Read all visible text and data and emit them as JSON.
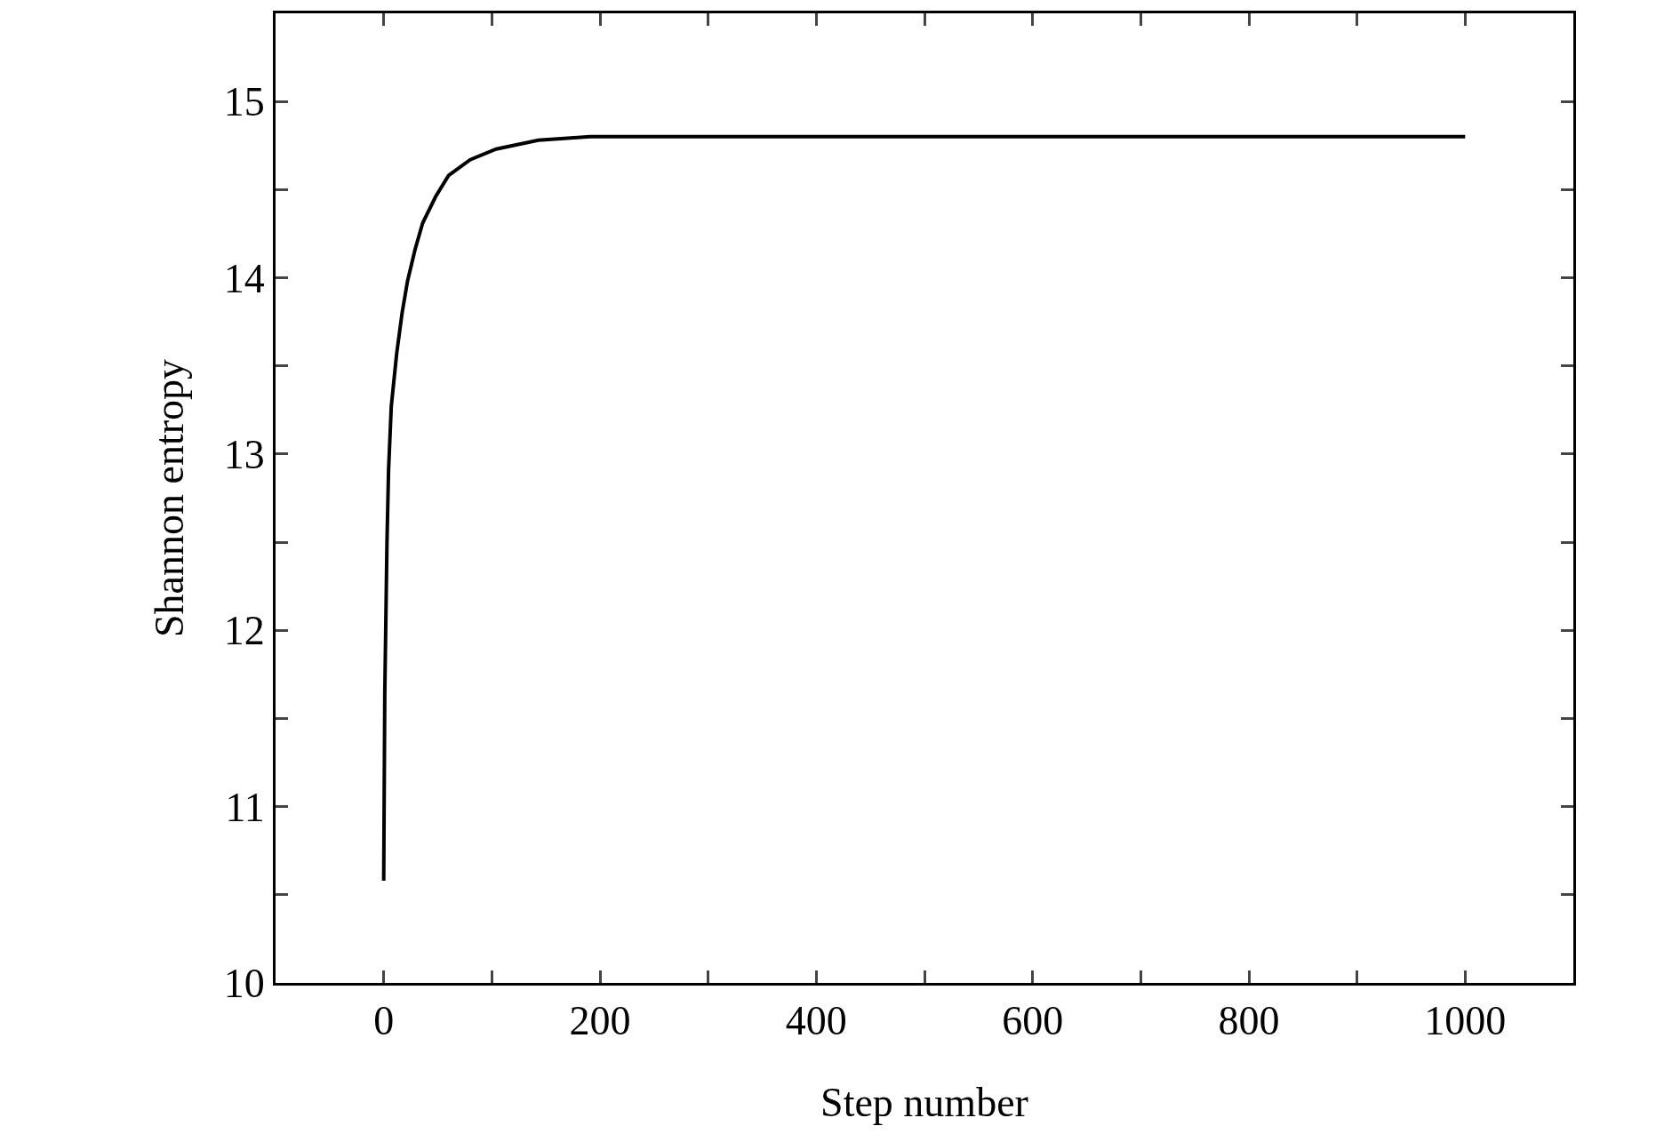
{
  "chart_data": {
    "type": "line",
    "xlabel": "Step number",
    "ylabel": "Shannon entropy",
    "x": [
      0,
      1,
      3,
      4.5,
      7,
      12,
      17,
      22,
      29,
      36,
      48,
      60,
      80,
      104,
      143,
      191,
      250,
      400,
      600,
      800,
      1000
    ],
    "series": [
      {
        "color": "#000000",
        "values": [
          10.58,
          11.64,
          12.49,
          12.91,
          13.27,
          13.57,
          13.8,
          13.98,
          14.16,
          14.31,
          14.46,
          14.58,
          14.67,
          14.73,
          14.78,
          14.8,
          14.8,
          14.8,
          14.8,
          14.8,
          14.8
        ]
      }
    ],
    "xlim": [
      -100,
      1100
    ],
    "xticks": [
      0,
      {
        "value": 100,
        "label": null
      },
      200,
      {
        "value": 300,
        "label": null
      },
      400,
      {
        "value": 500,
        "label": null
      },
      600,
      {
        "value": 700,
        "label": null
      },
      800,
      {
        "value": 900,
        "label": null
      },
      1000
    ],
    "ylim": [
      10,
      15.5
    ],
    "yticks": [
      10,
      {
        "value": 10.5,
        "label": null
      },
      11,
      {
        "value": 11.5,
        "label": null
      },
      12,
      {
        "value": 12.5,
        "label": null
      },
      13,
      {
        "value": 13.5,
        "label": null
      },
      14,
      {
        "value": 14.5,
        "label": null
      },
      15
    ],
    "marker": "none",
    "line_style": "solid"
  }
}
